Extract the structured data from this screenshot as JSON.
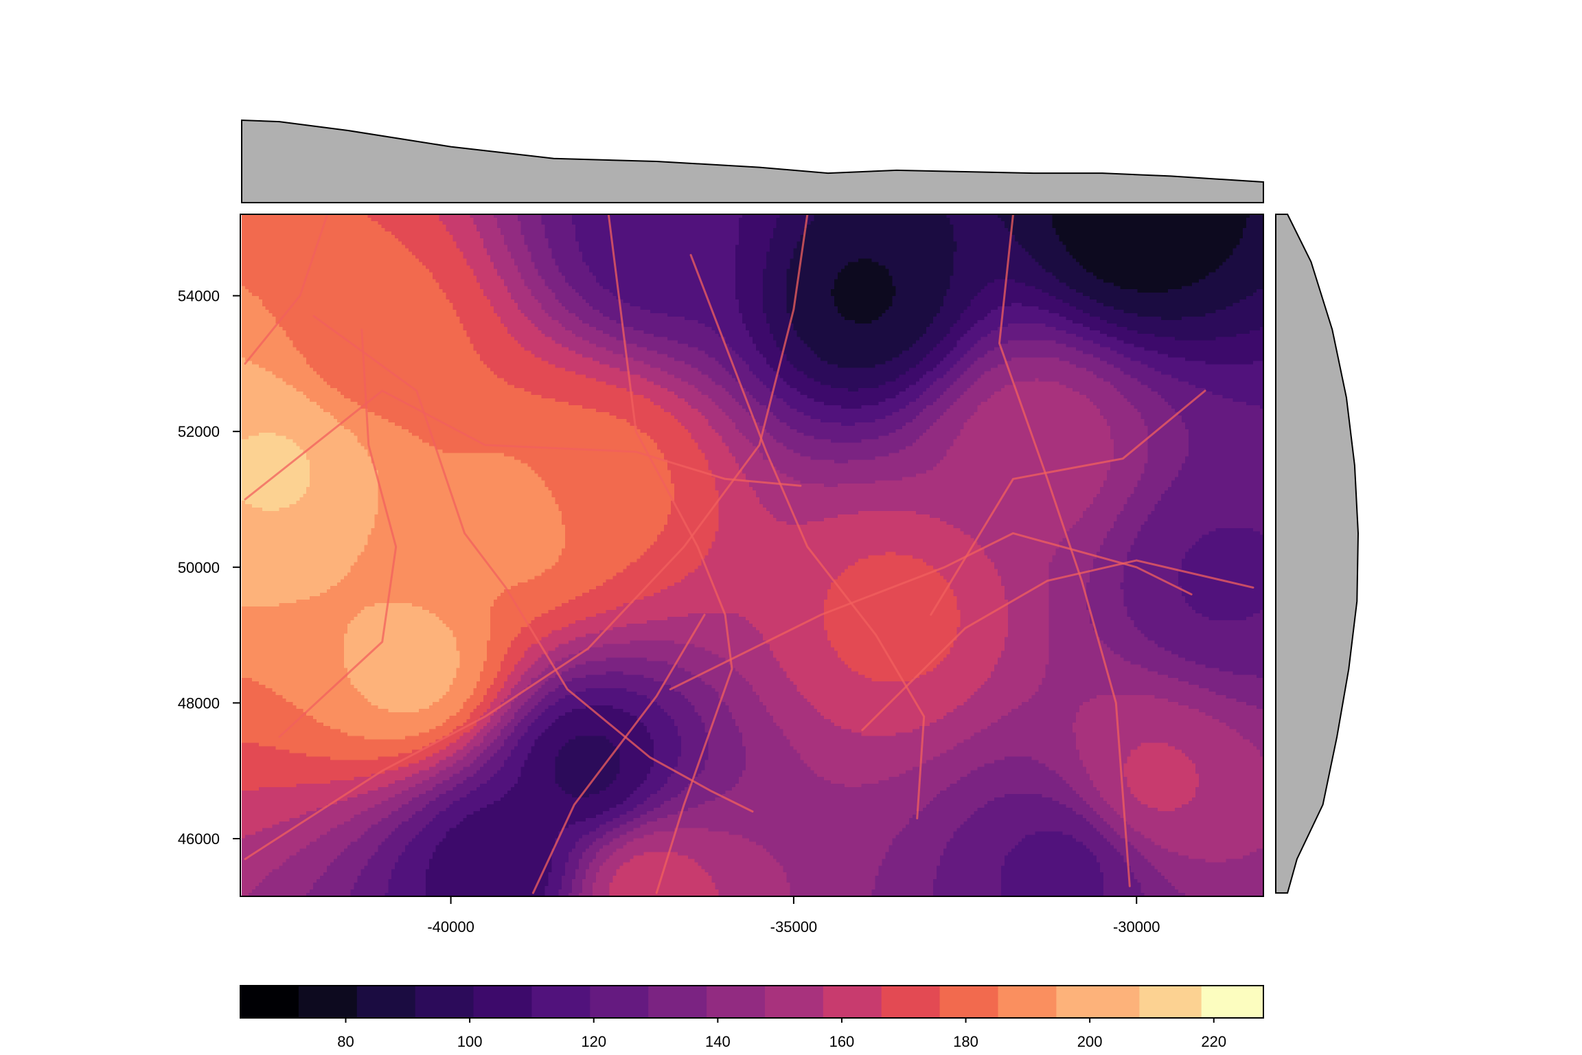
{
  "chart_data": {
    "type": "heatmap",
    "title": "",
    "xlabel": "",
    "ylabel": "",
    "xlim": [
      -43050,
      -28150
    ],
    "ylim": [
      45150,
      55200
    ],
    "x_ticks": [
      -40000,
      -35000,
      -30000
    ],
    "x_tick_labels": [
      "-40000",
      "-35000",
      "-30000"
    ],
    "y_ticks": [
      46000,
      48000,
      50000,
      52000,
      54000
    ],
    "y_tick_labels": [
      "46000",
      "48000",
      "50000",
      "52000",
      "54000"
    ],
    "grid": false,
    "colorbar": {
      "placement": "bottom",
      "range": [
        63,
        228
      ],
      "breaks": [
        63,
        72.4,
        81.8,
        91.2,
        100.6,
        110,
        119.4,
        128.8,
        138.2,
        147.6,
        157,
        166.4,
        175.8,
        185.2,
        194.6,
        208,
        218,
        228
      ],
      "colors": [
        "#000004",
        "#0d0a1f",
        "#1b0c41",
        "#2c0b5a",
        "#3d0a6b",
        "#51127c",
        "#651a80",
        "#7b2382",
        "#922b81",
        "#a8327d",
        "#c83b6e",
        "#e34a53",
        "#f26a4e",
        "#fa8f5f",
        "#fdb27a",
        "#fcd292",
        "#fcfdbf"
      ],
      "ticks": [
        80,
        100,
        120,
        140,
        160,
        180,
        200,
        220
      ],
      "tick_labels": [
        "80",
        "100",
        "120",
        "140",
        "160",
        "180",
        "200",
        "220"
      ]
    },
    "marginal_x": {
      "placement": "top",
      "x": [
        -43050,
        -42500,
        -41500,
        -40000,
        -38500,
        -37000,
        -35500,
        -34500,
        -33500,
        -32500,
        -31500,
        -30500,
        -29500,
        -28150
      ],
      "values": [
        206,
        205,
        199,
        188,
        180,
        178,
        174,
        170,
        172,
        171,
        170,
        170,
        168,
        164
      ]
    },
    "marginal_y": {
      "placement": "right",
      "y": [
        45200,
        45700,
        46500,
        47500,
        48500,
        49500,
        50500,
        51500,
        52500,
        53500,
        54500,
        55200
      ],
      "values": [
        100,
        108,
        130,
        142,
        152,
        159,
        160,
        157,
        150,
        138,
        120,
        100
      ]
    },
    "field_value_range": [
      70,
      225
    ],
    "field_features": [
      {
        "kind": "high",
        "x": -42500,
        "y": 51500,
        "value": 210
      },
      {
        "kind": "high",
        "x": -40500,
        "y": 48500,
        "value": 200
      },
      {
        "kind": "high",
        "x": -39000,
        "y": 50700,
        "value": 190
      },
      {
        "kind": "high",
        "x": -37800,
        "y": 51300,
        "value": 180
      },
      {
        "kind": "high",
        "x": -41200,
        "y": 53200,
        "value": 180
      },
      {
        "kind": "high",
        "x": -33500,
        "y": 49300,
        "value": 170
      },
      {
        "kind": "high",
        "x": -31500,
        "y": 51800,
        "value": 155
      },
      {
        "kind": "high",
        "x": -29800,
        "y": 46800,
        "value": 160
      },
      {
        "kind": "high",
        "x": -37200,
        "y": 45300,
        "value": 165
      },
      {
        "kind": "low",
        "x": -38000,
        "y": 47000,
        "value": 95
      },
      {
        "kind": "low",
        "x": -39200,
        "y": 45600,
        "value": 100
      },
      {
        "kind": "low",
        "x": -34000,
        "y": 54000,
        "value": 80
      },
      {
        "kind": "low",
        "x": -30000,
        "y": 55100,
        "value": 75
      },
      {
        "kind": "low",
        "x": -37000,
        "y": 54800,
        "value": 112
      },
      {
        "kind": "low",
        "x": -28800,
        "y": 49800,
        "value": 118
      },
      {
        "kind": "low",
        "x": -31000,
        "y": 45600,
        "value": 115
      }
    ],
    "roads": [
      [
        [
          -43000,
          53000
        ],
        [
          -42200,
          54000
        ],
        [
          -41800,
          55200
        ]
      ],
      [
        [
          -43000,
          51000
        ],
        [
          -41000,
          52600
        ],
        [
          -39500,
          51800
        ],
        [
          -37300,
          51700
        ],
        [
          -36000,
          51300
        ],
        [
          -34900,
          51200
        ]
      ],
      [
        [
          -42000,
          53700
        ],
        [
          -40500,
          52600
        ],
        [
          -39800,
          50500
        ],
        [
          -39200,
          49700
        ],
        [
          -38300,
          48200
        ],
        [
          -37100,
          47200
        ],
        [
          -36200,
          46700
        ],
        [
          -35600,
          46400
        ]
      ],
      [
        [
          -43000,
          45700
        ],
        [
          -41000,
          47000
        ],
        [
          -39500,
          47800
        ],
        [
          -38000,
          48800
        ],
        [
          -36600,
          50300
        ],
        [
          -35500,
          51800
        ],
        [
          -35000,
          53800
        ],
        [
          -34800,
          55200
        ]
      ],
      [
        [
          -42500,
          47500
        ],
        [
          -41000,
          48900
        ],
        [
          -40800,
          50300
        ],
        [
          -41200,
          51800
        ],
        [
          -41300,
          53500
        ]
      ],
      [
        [
          -37700,
          55200
        ],
        [
          -37300,
          52000
        ],
        [
          -36400,
          50300
        ],
        [
          -36000,
          49300
        ],
        [
          -35900,
          48500
        ],
        [
          -36600,
          46500
        ],
        [
          -37000,
          45200
        ]
      ],
      [
        [
          -36500,
          54600
        ],
        [
          -35400,
          51700
        ],
        [
          -34800,
          50300
        ],
        [
          -33800,
          49000
        ],
        [
          -33100,
          47800
        ],
        [
          -33200,
          46300
        ]
      ],
      [
        [
          -34000,
          47600
        ],
        [
          -32500,
          49100
        ],
        [
          -31300,
          49800
        ],
        [
          -30000,
          50100
        ],
        [
          -28300,
          49700
        ]
      ],
      [
        [
          -31800,
          55200
        ],
        [
          -32000,
          53300
        ],
        [
          -31300,
          51300
        ],
        [
          -30800,
          49800
        ],
        [
          -30300,
          48000
        ],
        [
          -30100,
          45300
        ]
      ],
      [
        [
          -33000,
          49300
        ],
        [
          -31800,
          51300
        ],
        [
          -30200,
          51600
        ],
        [
          -29000,
          52600
        ]
      ],
      [
        [
          -36800,
          48200
        ],
        [
          -34600,
          49300
        ],
        [
          -32800,
          50000
        ],
        [
          -31800,
          50500
        ],
        [
          -30000,
          50000
        ],
        [
          -29200,
          49600
        ]
      ],
      [
        [
          -38800,
          45200
        ],
        [
          -38200,
          46500
        ],
        [
          -37000,
          48100
        ],
        [
          -36300,
          49300
        ]
      ]
    ]
  }
}
